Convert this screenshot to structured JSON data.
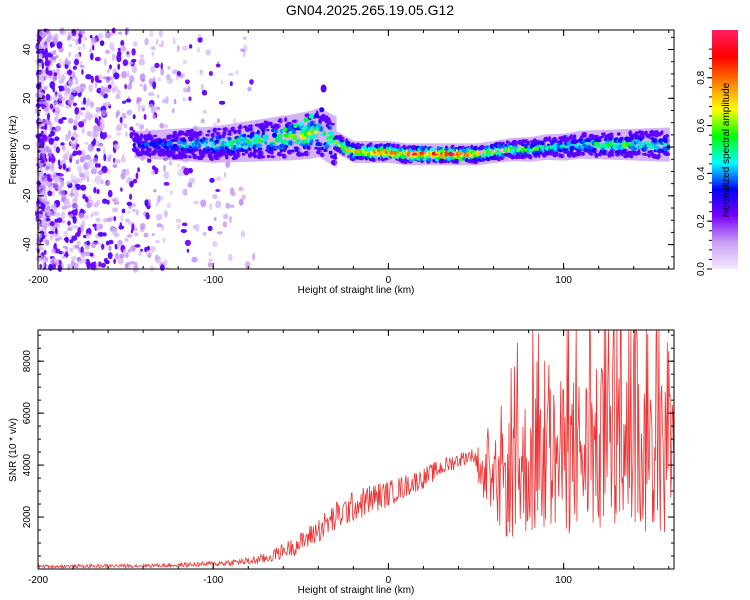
{
  "title": "GN04.2025.265.19.05.G12",
  "chart_data": [
    {
      "type": "heatmap",
      "xlabel": "Height of straight line (km)",
      "ylabel": "Frequency (Hz)",
      "xlim": [
        -200,
        163
      ],
      "ylim": [
        -50,
        48
      ],
      "xticks": [
        -200,
        -100,
        0,
        100
      ],
      "xtick_labels": [
        "-200",
        "-100",
        "0",
        "100"
      ],
      "yticks": [
        -40,
        -20,
        0,
        20,
        40
      ],
      "ytick_labels": [
        "-40",
        "-20",
        "0",
        "20",
        "40"
      ],
      "colorbar": {
        "label": "Normalized spectral amplitude",
        "range": [
          0,
          1
        ],
        "ticks": [
          0.0,
          0.2,
          0.4,
          0.6,
          0.8
        ],
        "tick_labels": [
          "0.0",
          "0.2",
          "0.4",
          "0.6",
          "0.8"
        ],
        "colors": [
          "#f4e8ff",
          "#c9a0f2",
          "#7a00ff",
          "#0000ff",
          "#00ffff",
          "#00ff00",
          "#ffff00",
          "#ff8000",
          "#ff0000",
          "#ff2060"
        ]
      },
      "ridge": {
        "x": [
          -145,
          -130,
          -115,
          -100,
          -85,
          -70,
          -55,
          -45,
          -40,
          -35,
          -30,
          -25,
          -20,
          -10,
          0,
          10,
          20,
          30,
          40,
          50,
          60,
          70,
          80,
          90,
          100,
          110,
          120,
          130,
          140,
          150,
          160
        ],
        "freq": [
          1,
          1,
          1,
          1,
          2,
          3,
          4,
          5,
          6,
          4,
          2,
          0,
          -2,
          -2,
          -2,
          -3,
          -3,
          -3,
          -3,
          -3,
          -2,
          -1,
          -1,
          0,
          0,
          1,
          1,
          1,
          1,
          1,
          1
        ],
        "amplitude": [
          0.35,
          0.38,
          0.45,
          0.5,
          0.55,
          0.55,
          0.6,
          0.65,
          0.6,
          0.55,
          0.65,
          0.75,
          0.8,
          0.85,
          0.9,
          0.92,
          0.95,
          0.95,
          0.92,
          0.85,
          0.75,
          0.65,
          0.6,
          0.55,
          0.5,
          0.5,
          0.55,
          0.6,
          0.55,
          0.5,
          0.5
        ]
      }
    },
    {
      "type": "line",
      "xlabel": "Height of straight line (km)",
      "ylabel": "SNR (10 * v/v)",
      "xlim": [
        -200,
        163
      ],
      "ylim": [
        0,
        9200
      ],
      "xticks": [
        -200,
        -100,
        0,
        100
      ],
      "xtick_labels": [
        "-200",
        "-100",
        "0",
        "100"
      ],
      "yticks": [
        2000,
        4000,
        6000,
        8000
      ],
      "ytick_labels": [
        "2000",
        "4000",
        "6000",
        "8000"
      ],
      "color": "#ee3333",
      "envelope": {
        "x": [
          -200,
          -150,
          -120,
          -100,
          -80,
          -70,
          -60,
          -50,
          -40,
          -30,
          -20,
          -10,
          0,
          10,
          20,
          30,
          40,
          48,
          52,
          55,
          58,
          60,
          70,
          80,
          90,
          100,
          110,
          120,
          130,
          140,
          150,
          163
        ],
        "mean": [
          100,
          120,
          150,
          200,
          300,
          400,
          700,
          1000,
          1500,
          2000,
          2400,
          2700,
          2900,
          3200,
          3500,
          3900,
          4200,
          4400,
          4000,
          3500,
          3000,
          2800,
          3600,
          4000,
          4200,
          4300,
          4400,
          4500,
          4500,
          4500,
          4400,
          4300
        ],
        "spread": [
          60,
          70,
          80,
          100,
          150,
          200,
          300,
          400,
          500,
          600,
          600,
          600,
          500,
          450,
          400,
          350,
          300,
          250,
          800,
          1200,
          1000,
          1500,
          2500,
          2800,
          3000,
          3000,
          3200,
          3300,
          3400,
          3300,
          3200,
          3000
        ]
      }
    }
  ]
}
